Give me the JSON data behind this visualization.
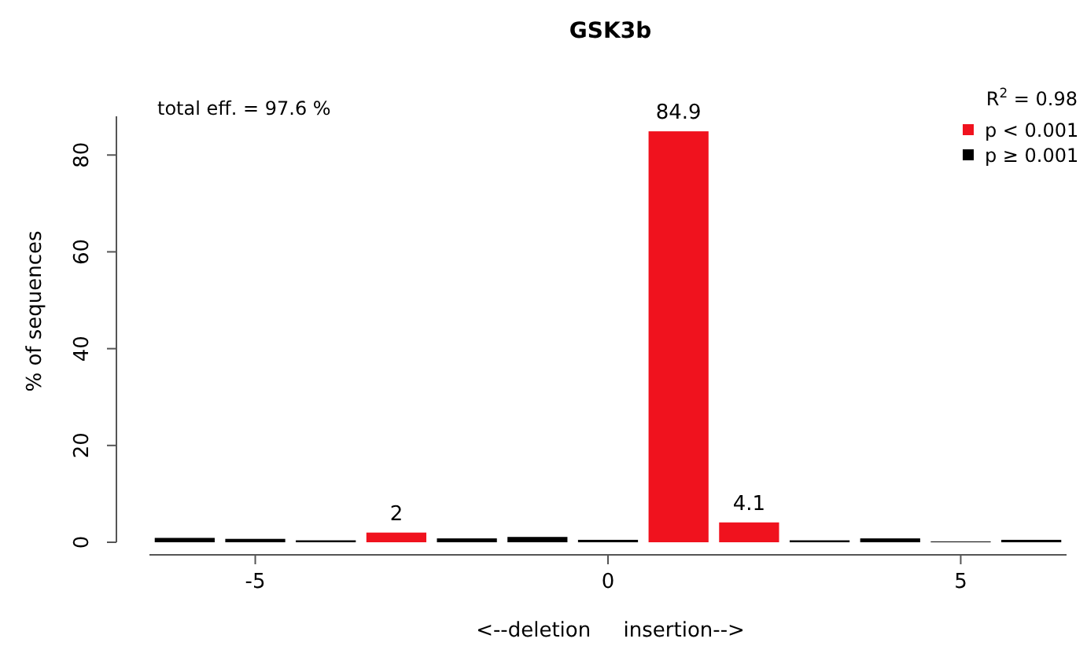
{
  "chart_data": {
    "type": "bar",
    "title": "GSK3b",
    "xlabel": "<--deletion     insertion-->",
    "ylabel": "% of sequences",
    "x": [
      -6,
      -5,
      -4,
      -3,
      -2,
      -1,
      0,
      1,
      2,
      3,
      4,
      5,
      6
    ],
    "series": [
      {
        "name": "p < 0.001",
        "color": "#f0121e",
        "values": [
          null,
          null,
          null,
          2,
          null,
          null,
          null,
          84.9,
          4.1,
          null,
          null,
          null,
          null
        ],
        "value_labels": [
          null,
          null,
          null,
          "2",
          null,
          null,
          null,
          "84.9",
          "4.1",
          null,
          null,
          null,
          null
        ]
      },
      {
        "name": "p ≥ 0.001",
        "color": "#000000",
        "values": [
          0.9,
          0.7,
          0.4,
          null,
          0.8,
          1.1,
          0.5,
          null,
          null,
          0.4,
          0.8,
          0,
          0.5
        ]
      }
    ],
    "xlim": [
      -6.5,
      6.5
    ],
    "xticks": [
      -5,
      0,
      5
    ],
    "ylim": [
      0,
      88
    ],
    "yticks": [
      0,
      20,
      40,
      60,
      80
    ],
    "legend": "top right",
    "annotations": [
      "total eff. = 97.6 %",
      "R$^{2}$ = 0.98"
    ]
  }
}
